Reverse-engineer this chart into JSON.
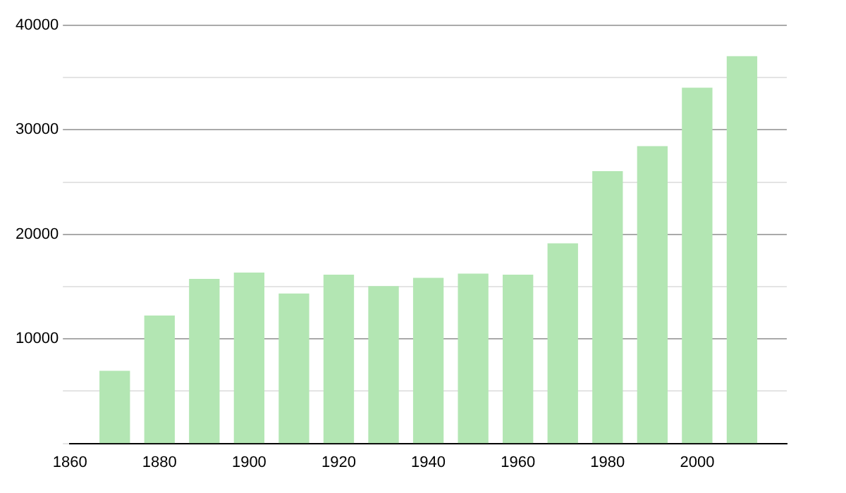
{
  "chart_data": {
    "type": "bar",
    "x": [
      1870,
      1880,
      1890,
      1900,
      1910,
      1920,
      1930,
      1940,
      1950,
      1960,
      1970,
      1980,
      1990,
      2000,
      2010
    ],
    "values": [
      6900,
      12200,
      15700,
      16300,
      14300,
      16100,
      15000,
      15800,
      16200,
      16100,
      19100,
      26000,
      28400,
      34000,
      37000
    ],
    "color": "#b3e6b3",
    "xlim": [
      1860,
      2020
    ],
    "xticks": [
      1860,
      1880,
      1900,
      1920,
      1940,
      1960,
      1980,
      2000
    ],
    "ylim": [
      0,
      40000
    ],
    "yticks": [
      {
        "value": 0,
        "label": null
      },
      {
        "value": 5000,
        "label": null
      },
      10000,
      {
        "value": 15000,
        "label": null
      },
      20000,
      {
        "value": 25000,
        "label": null
      },
      30000,
      {
        "value": 35000,
        "label": null
      },
      40000
    ],
    "grid": "y",
    "legend": false
  }
}
